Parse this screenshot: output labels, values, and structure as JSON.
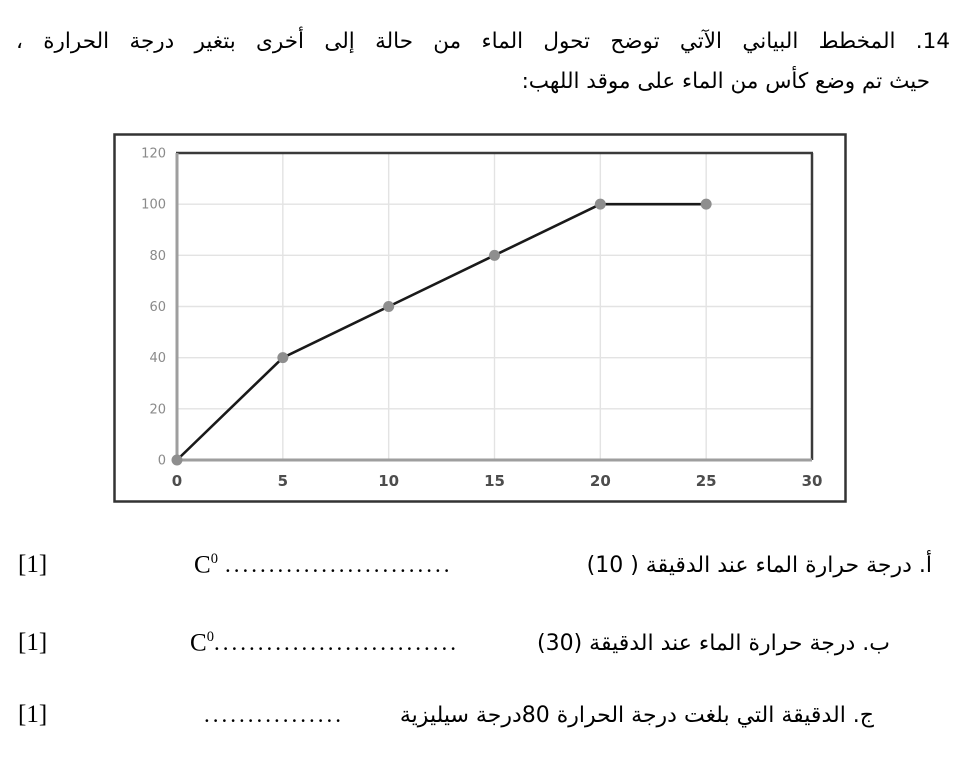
{
  "header": {
    "line1": "14. المخطط البياني الآتي توضح تحول الماء من حالة إلى أخرى بتغير درجة الحرارة ،",
    "line2": "حيث تم وضع كأس من الماء على موقد اللهب:"
  },
  "chart_data": {
    "type": "line",
    "x": [
      0,
      5,
      10,
      15,
      20,
      25
    ],
    "y": [
      0,
      40,
      60,
      80,
      100,
      100
    ],
    "xlim": [
      0,
      30
    ],
    "ylim": [
      0,
      120
    ],
    "xticks": [
      0,
      5,
      10,
      15,
      20,
      25,
      30
    ],
    "yticks": [
      0,
      20,
      40,
      60,
      80,
      100,
      120
    ],
    "grid": true,
    "legend": "none",
    "title": "",
    "xlabel": "",
    "ylabel": "",
    "marker": "circle",
    "colors": {
      "line": "#1a1a1a",
      "marker": "#8e8e8e",
      "grid": "#e3e3e3",
      "plot_border": "#3a3a3a",
      "axis": "#9e9e9e",
      "x_tick_label": "#4d4d4d",
      "y_tick_label": "#8a8a8a",
      "frame": "#333333",
      "background": "#ffffff"
    }
  },
  "questions": [
    {
      "id": "a",
      "mark": "[1]",
      "unit": "C",
      "unit_sup": "0",
      "dots": "..........................",
      "text": "أ. درجة حرارة الماء عند الدقيقة ( 10)"
    },
    {
      "id": "b",
      "mark": "[1]",
      "unit": "C",
      "unit_sup": "0",
      "dots": "............................",
      "text": "ب. درجة حرارة الماء عند الدقيقة (30)"
    },
    {
      "id": "c",
      "mark": "[1]",
      "dots": "................",
      "text": "ج. الدقيقة التي بلغت درجة الحرارة 80درجة سيليزية"
    }
  ]
}
